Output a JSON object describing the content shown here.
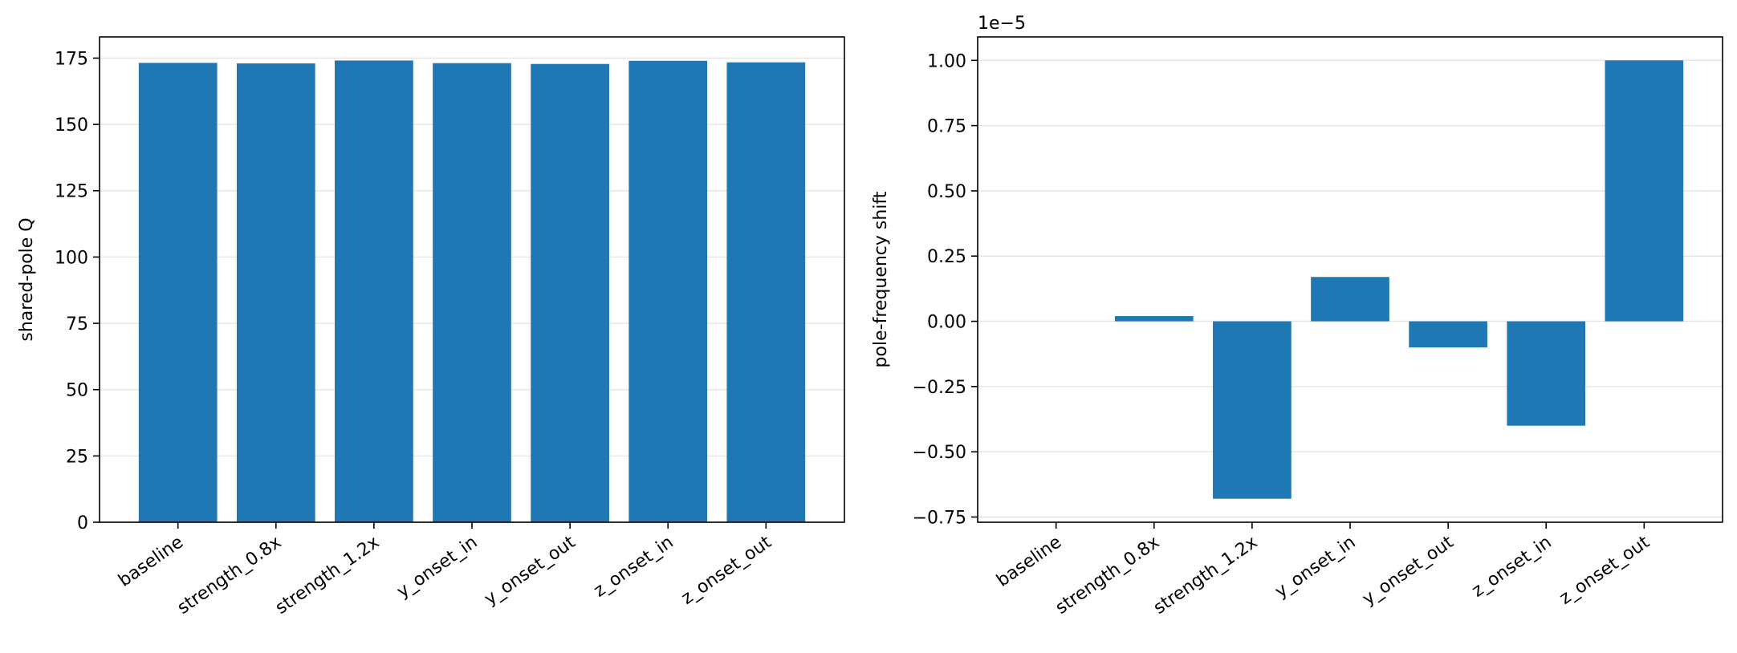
{
  "chart_data": [
    {
      "type": "bar",
      "categories": [
        "baseline",
        "strength_0.8x",
        "strength_1.2x",
        "y_onset_in",
        "y_onset_out",
        "z_onset_in",
        "z_onset_out"
      ],
      "values": [
        173.2,
        173.0,
        174.1,
        173.1,
        172.8,
        174.0,
        173.4
      ],
      "ylabel": "shared-pole Q",
      "ylim": [
        0,
        183
      ],
      "yticks": [
        0,
        25,
        50,
        75,
        100,
        125,
        150,
        175
      ],
      "ytick_labels": [
        "0",
        "25",
        "50",
        "75",
        "100",
        "125",
        "150",
        "175"
      ],
      "y_scale_label": "",
      "grid": "horizontal",
      "bar_color": "#1f77b4"
    },
    {
      "type": "bar",
      "categories": [
        "baseline",
        "strength_0.8x",
        "strength_1.2x",
        "y_onset_in",
        "y_onset_out",
        "z_onset_in",
        "z_onset_out"
      ],
      "values": [
        0.0,
        2e-07,
        -6.8e-06,
        1.7e-06,
        -1e-06,
        -4e-06,
        1e-05
      ],
      "ylabel": "pole-frequency shift",
      "ylim": [
        -7.7e-06,
        1.09e-05
      ],
      "yticks": [
        -7.5e-06,
        -5e-06,
        -2.5e-06,
        0,
        2.5e-06,
        5e-06,
        7.5e-06,
        1e-05
      ],
      "ytick_labels": [
        "−0.75",
        "−0.50",
        "−0.25",
        "0.00",
        "0.25",
        "0.50",
        "0.75",
        "1.00"
      ],
      "y_scale_label": "1e−5",
      "grid": "horizontal",
      "bar_color": "#1f77b4"
    }
  ]
}
